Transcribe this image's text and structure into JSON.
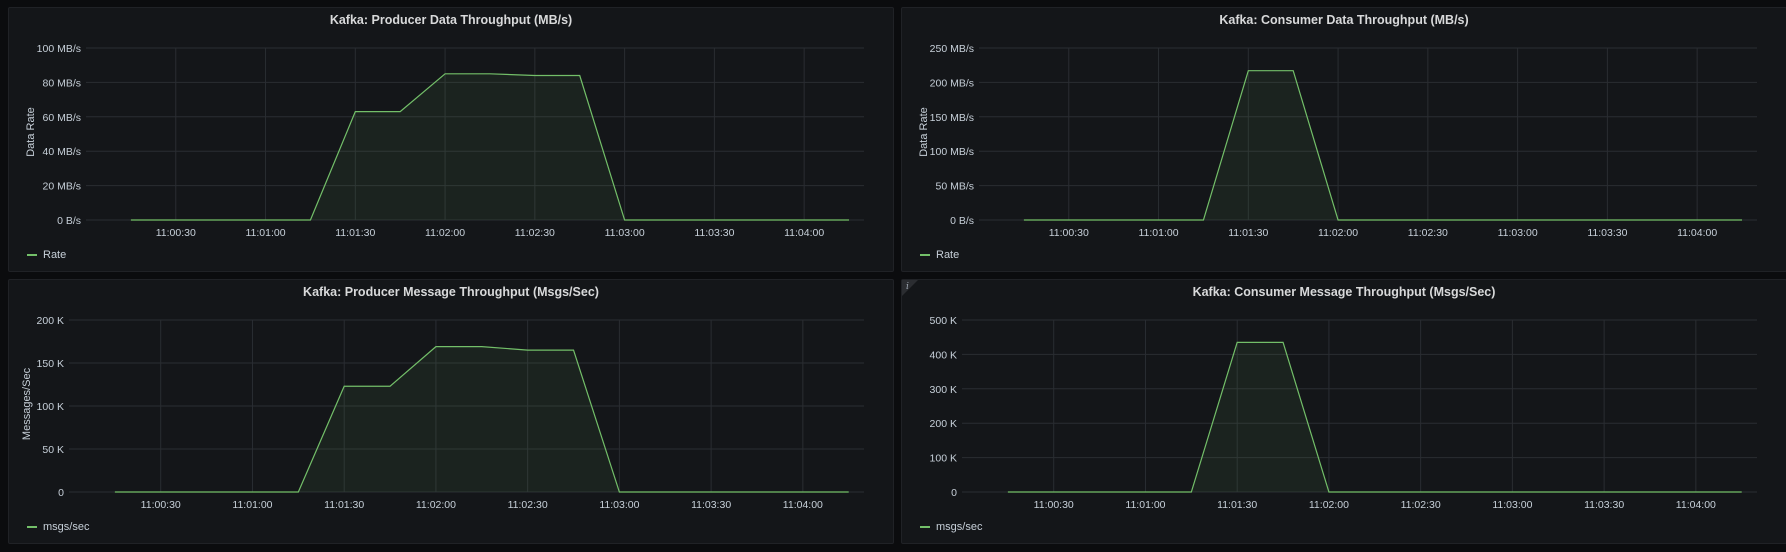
{
  "panels": [
    {
      "title": "Kafka: Producer Data Throughput (MB/s)",
      "ylabel": "Data Rate",
      "legend": "Rate",
      "has_info": false,
      "chart_data": {
        "type": "area",
        "x": [
          "11:00:15",
          "11:01:15",
          "11:01:30",
          "11:01:45",
          "11:02:00",
          "11:02:15",
          "11:02:30",
          "11:02:45",
          "11:03:00",
          "11:04:15"
        ],
        "series": [
          {
            "name": "Rate",
            "values": [
              0,
              0,
              63,
              63,
              85,
              85,
              84,
              84,
              0,
              0
            ]
          }
        ],
        "xticks": [
          "11:00:30",
          "11:01:00",
          "11:01:30",
          "11:02:00",
          "11:02:30",
          "11:03:00",
          "11:03:30",
          "11:04:00"
        ],
        "yticks": [
          "0 B/s",
          "20 MB/s",
          "40 MB/s",
          "60 MB/s",
          "80 MB/s",
          "100 MB/s"
        ],
        "ylim": [
          0,
          100
        ],
        "color": "#73bf69"
      }
    },
    {
      "title": "Kafka: Consumer Data Throughput (MB/s)",
      "ylabel": "Data Rate",
      "legend": "Rate",
      "has_info": false,
      "chart_data": {
        "type": "area",
        "x": [
          "11:00:15",
          "11:01:15",
          "11:01:30",
          "11:01:45",
          "11:02:00",
          "11:04:15"
        ],
        "series": [
          {
            "name": "Rate",
            "values": [
              0,
              0,
              217,
              217,
              0,
              0
            ]
          }
        ],
        "xticks": [
          "11:00:30",
          "11:01:00",
          "11:01:30",
          "11:02:00",
          "11:02:30",
          "11:03:00",
          "11:03:30",
          "11:04:00"
        ],
        "yticks": [
          "0 B/s",
          "50 MB/s",
          "100 MB/s",
          "150 MB/s",
          "200 MB/s",
          "250 MB/s"
        ],
        "ylim": [
          0,
          250
        ],
        "color": "#73bf69"
      }
    },
    {
      "title": "Kafka: Producer Message Throughput (Msgs/Sec)",
      "ylabel": "Messages/Sec",
      "legend": "msgs/sec",
      "has_info": false,
      "chart_data": {
        "type": "area",
        "x": [
          "11:00:15",
          "11:01:15",
          "11:01:30",
          "11:01:45",
          "11:02:00",
          "11:02:15",
          "11:02:30",
          "11:02:45",
          "11:03:00",
          "11:04:15"
        ],
        "series": [
          {
            "name": "msgs/sec",
            "values": [
              0,
              0,
              123000,
              123000,
              169000,
              169000,
              165000,
              165000,
              0,
              0
            ]
          }
        ],
        "xticks": [
          "11:00:30",
          "11:01:00",
          "11:01:30",
          "11:02:00",
          "11:02:30",
          "11:03:00",
          "11:03:30",
          "11:04:00"
        ],
        "yticks": [
          "0",
          "50 K",
          "100 K",
          "150 K",
          "200 K"
        ],
        "ylim": [
          0,
          200000
        ],
        "color": "#73bf69"
      }
    },
    {
      "title": "Kafka: Consumer Message Throughput (Msgs/Sec)",
      "ylabel": "",
      "legend": "msgs/sec",
      "has_info": true,
      "info_icon": "i",
      "chart_data": {
        "type": "area",
        "x": [
          "11:00:15",
          "11:01:15",
          "11:01:30",
          "11:01:45",
          "11:02:00",
          "11:04:15"
        ],
        "series": [
          {
            "name": "msgs/sec",
            "values": [
              0,
              0,
              435000,
              435000,
              0,
              0
            ]
          }
        ],
        "xticks": [
          "11:00:30",
          "11:01:00",
          "11:01:30",
          "11:02:00",
          "11:02:30",
          "11:03:00",
          "11:03:30",
          "11:04:00"
        ],
        "yticks": [
          "0",
          "100 K",
          "200 K",
          "300 K",
          "400 K",
          "500 K"
        ],
        "ylim": [
          0,
          500000
        ],
        "color": "#73bf69"
      }
    }
  ]
}
